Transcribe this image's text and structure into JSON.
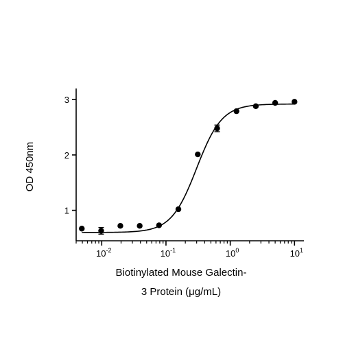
{
  "chart_data": {
    "type": "scatter",
    "title": "",
    "xscale": "log",
    "xlim": [
      0.004,
      14
    ],
    "ylim": [
      0.45,
      3.2
    ],
    "xticks": [
      {
        "base": "10",
        "exp": "-2",
        "value": 0.01
      },
      {
        "base": "10",
        "exp": "-1",
        "value": 0.1
      },
      {
        "base": "10",
        "exp": "0",
        "value": 1
      },
      {
        "base": "10",
        "exp": "1",
        "value": 10
      }
    ],
    "yticks": [
      {
        "label": "1",
        "value": 1
      },
      {
        "label": "2",
        "value": 2
      },
      {
        "label": "3",
        "value": 3
      }
    ],
    "xlabel_line1": "Biotinylated Mouse Galectin-",
    "xlabel_line2": "3 Protein (μg/mL)",
    "ylabel": "OD 450nm",
    "points": [
      {
        "x": 0.0049,
        "y": 0.67,
        "err": 0
      },
      {
        "x": 0.0098,
        "y": 0.63,
        "err": 0.06
      },
      {
        "x": 0.0195,
        "y": 0.72,
        "err": 0
      },
      {
        "x": 0.039,
        "y": 0.72,
        "err": 0
      },
      {
        "x": 0.078,
        "y": 0.73,
        "err": 0
      },
      {
        "x": 0.156,
        "y": 1.02,
        "err": 0
      },
      {
        "x": 0.3125,
        "y": 2.01,
        "err": 0
      },
      {
        "x": 0.625,
        "y": 2.48,
        "err": 0.06
      },
      {
        "x": 1.25,
        "y": 2.79,
        "err": 0
      },
      {
        "x": 2.5,
        "y": 2.88,
        "err": 0
      },
      {
        "x": 5,
        "y": 2.94,
        "err": 0
      },
      {
        "x": 10,
        "y": 2.96,
        "err": 0
      }
    ],
    "fit": {
      "model": "4PL",
      "bottom": 0.6,
      "top": 2.92,
      "ec50": 0.3,
      "hill": 2.2
    },
    "grid": false,
    "legend": "none",
    "colors": {
      "marker": "#000000",
      "line": "#000000",
      "axis": "#000000"
    }
  }
}
